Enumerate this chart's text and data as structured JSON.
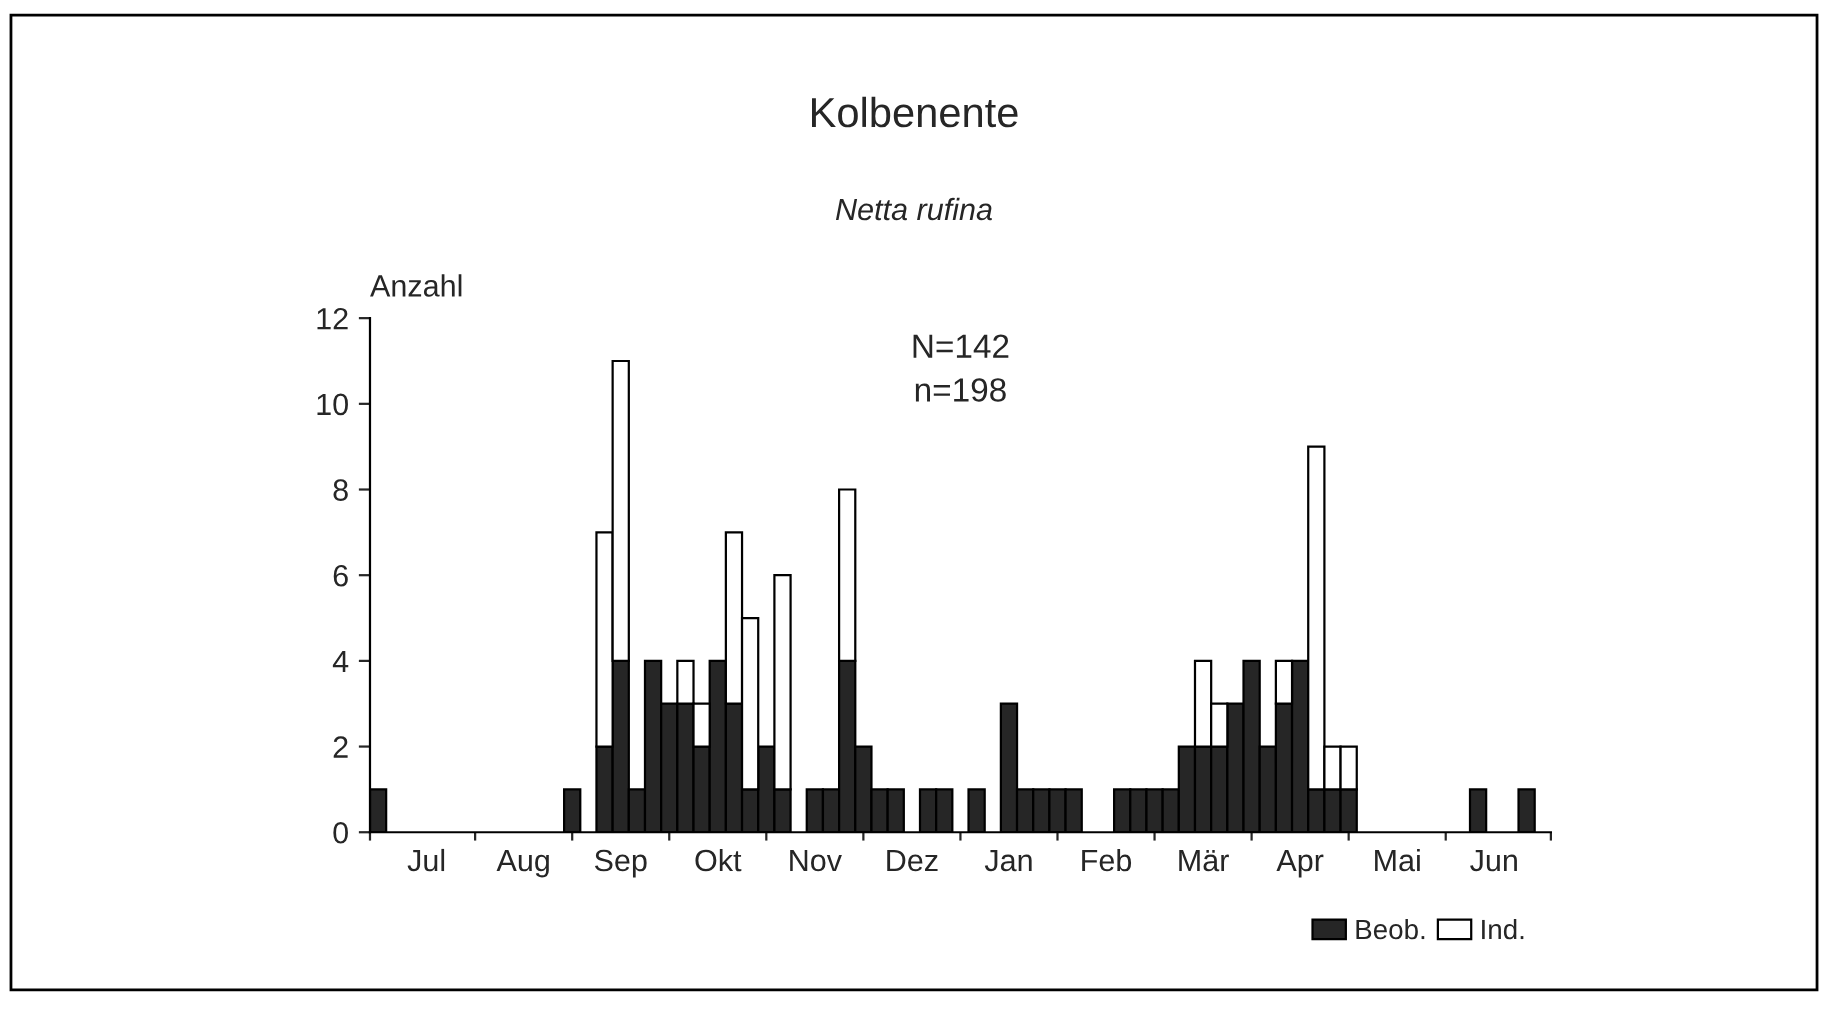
{
  "chart_data": {
    "type": "bar",
    "title": "Kolbenente",
    "subtitle": "Netta rufina",
    "ylabel": "Anzahl",
    "annotations": [
      "N=142",
      "n=198"
    ],
    "categories": [
      null,
      null,
      null,
      "Jul",
      null,
      null,
      null,
      null,
      null,
      "Aug",
      null,
      null,
      null,
      null,
      null,
      "Sep",
      null,
      null,
      null,
      null,
      null,
      "Okt",
      null,
      null,
      null,
      null,
      null,
      "Nov",
      null,
      null,
      null,
      null,
      null,
      "Dez",
      null,
      null,
      null,
      null,
      null,
      "Jan",
      null,
      null,
      null,
      null,
      null,
      "Feb",
      null,
      null,
      null,
      null,
      null,
      "Mär",
      null,
      null,
      null,
      null,
      null,
      "Apr",
      null,
      null,
      null,
      null,
      null,
      "Mai",
      null,
      null,
      null,
      null,
      null,
      "Jun",
      null,
      null,
      null
    ],
    "stacked": true,
    "series": [
      {
        "name": "Beob.",
        "color": "#262626",
        "values": [
          1,
          null,
          null,
          null,
          null,
          null,
          null,
          null,
          null,
          null,
          null,
          null,
          1,
          null,
          2,
          4,
          1,
          4,
          3,
          3,
          2,
          4,
          3,
          1,
          2,
          1,
          null,
          1,
          1,
          4,
          2,
          1,
          1,
          null,
          1,
          1,
          null,
          1,
          null,
          3,
          1,
          1,
          1,
          1,
          null,
          null,
          1,
          1,
          1,
          1,
          2,
          2,
          2,
          3,
          4,
          2,
          3,
          4,
          1,
          1,
          1,
          null,
          null,
          null,
          null,
          null,
          null,
          null,
          1,
          null,
          null,
          1,
          null
        ]
      },
      {
        "name": "Ind.",
        "color": "#ffffff",
        "values": [
          null,
          null,
          null,
          null,
          null,
          null,
          null,
          null,
          null,
          null,
          null,
          null,
          null,
          null,
          5,
          7,
          null,
          null,
          null,
          1,
          1,
          null,
          4,
          4,
          null,
          5,
          null,
          null,
          null,
          4,
          null,
          null,
          null,
          null,
          null,
          null,
          null,
          null,
          null,
          null,
          null,
          null,
          null,
          null,
          null,
          null,
          null,
          null,
          null,
          null,
          null,
          2,
          1,
          null,
          null,
          null,
          1,
          null,
          8,
          1,
          1,
          null,
          null,
          null,
          null,
          null,
          null,
          null,
          null,
          null,
          null,
          null,
          null
        ]
      }
    ],
    "ylim": [
      0,
      12
    ],
    "yticks": [
      0,
      2,
      4,
      6,
      8,
      10,
      12
    ],
    "grid": false,
    "legend": "bottom right"
  }
}
